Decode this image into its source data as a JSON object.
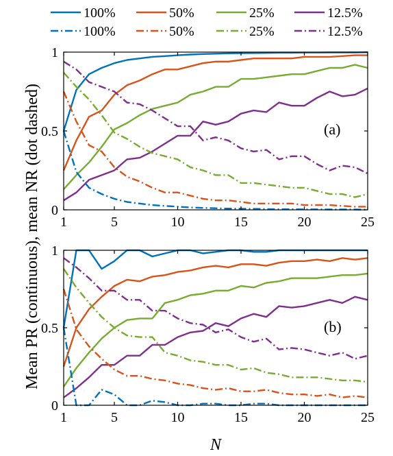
{
  "chart_data": {
    "type": "line",
    "ylabel": "Mean PR (continuous), mean NR (dot dashed)",
    "xlabel": "N",
    "legend": {
      "placement": "top",
      "rows": [
        [
          "100%",
          "50%",
          "25%",
          "12.5%"
        ],
        [
          "100%",
          "50%",
          "25%",
          "12.5%"
        ]
      ]
    },
    "colors": {
      "100%": "#0072BD",
      "50%": "#D95319",
      "25%": "#77AC30",
      "12.5%": "#7E2F8E"
    },
    "x": [
      1,
      2,
      3,
      4,
      5,
      6,
      7,
      8,
      9,
      10,
      11,
      12,
      13,
      14,
      15,
      16,
      17,
      18,
      19,
      20,
      21,
      22,
      23,
      24,
      25
    ],
    "xlim": [
      1,
      25
    ],
    "ylim": [
      0,
      1
    ],
    "xticks": [
      "1",
      "5",
      "10",
      "15",
      "20",
      "25"
    ],
    "yticks": [
      "0",
      "0.5",
      "1"
    ],
    "panels": [
      {
        "label": "(a)",
        "series": [
          {
            "name": "100%",
            "style": "solid",
            "values": [
              0.5,
              0.76,
              0.86,
              0.9,
              0.93,
              0.95,
              0.96,
              0.97,
              0.975,
              0.98,
              0.985,
              0.988,
              0.99,
              0.992,
              0.993,
              0.994,
              0.995,
              0.996,
              0.996,
              0.997,
              0.997,
              0.998,
              0.998,
              0.998,
              0.999
            ]
          },
          {
            "name": "50%",
            "style": "solid",
            "values": [
              0.25,
              0.44,
              0.59,
              0.63,
              0.73,
              0.79,
              0.82,
              0.86,
              0.89,
              0.89,
              0.91,
              0.93,
              0.94,
              0.94,
              0.95,
              0.96,
              0.96,
              0.96,
              0.96,
              0.97,
              0.97,
              0.97,
              0.975,
              0.98,
              0.98
            ]
          },
          {
            "name": "25%",
            "style": "solid",
            "values": [
              0.13,
              0.22,
              0.3,
              0.4,
              0.51,
              0.55,
              0.6,
              0.64,
              0.66,
              0.68,
              0.73,
              0.75,
              0.78,
              0.78,
              0.83,
              0.83,
              0.84,
              0.85,
              0.86,
              0.86,
              0.88,
              0.9,
              0.9,
              0.92,
              0.9
            ]
          },
          {
            "name": "12.5%",
            "style": "solid",
            "values": [
              0.06,
              0.11,
              0.19,
              0.22,
              0.25,
              0.32,
              0.33,
              0.37,
              0.42,
              0.47,
              0.47,
              0.56,
              0.54,
              0.56,
              0.61,
              0.63,
              0.62,
              0.68,
              0.66,
              0.66,
              0.71,
              0.75,
              0.72,
              0.73,
              0.77
            ]
          },
          {
            "name": "100%",
            "style": "dashdot",
            "values": [
              0.5,
              0.24,
              0.14,
              0.1,
              0.07,
              0.05,
              0.04,
              0.03,
              0.025,
              0.02,
              0.015,
              0.012,
              0.01,
              0.008,
              0.007,
              0.006,
              0.005,
              0.004,
              0.004,
              0.003,
              0.003,
              0.002,
              0.002,
              0.002,
              0.001
            ]
          },
          {
            "name": "50%",
            "style": "dashdot",
            "values": [
              0.75,
              0.56,
              0.41,
              0.37,
              0.27,
              0.21,
              0.18,
              0.14,
              0.11,
              0.11,
              0.09,
              0.07,
              0.06,
              0.06,
              0.05,
              0.04,
              0.04,
              0.04,
              0.04,
              0.03,
              0.03,
              0.03,
              0.025,
              0.02,
              0.02
            ]
          },
          {
            "name": "25%",
            "style": "dashdot",
            "values": [
              0.87,
              0.78,
              0.7,
              0.6,
              0.49,
              0.45,
              0.4,
              0.36,
              0.34,
              0.32,
              0.27,
              0.25,
              0.22,
              0.22,
              0.17,
              0.17,
              0.16,
              0.15,
              0.14,
              0.14,
              0.12,
              0.1,
              0.1,
              0.08,
              0.1
            ]
          },
          {
            "name": "12.5%",
            "style": "dashdot",
            "values": [
              0.94,
              0.89,
              0.81,
              0.78,
              0.75,
              0.68,
              0.67,
              0.63,
              0.58,
              0.53,
              0.53,
              0.44,
              0.46,
              0.44,
              0.39,
              0.37,
              0.38,
              0.32,
              0.34,
              0.34,
              0.29,
              0.25,
              0.28,
              0.27,
              0.23
            ]
          }
        ]
      },
      {
        "label": "(b)",
        "series": [
          {
            "name": "100%",
            "style": "solid",
            "values": [
              0.5,
              1.0,
              1.0,
              0.88,
              0.93,
              1.0,
              1.0,
              0.96,
              0.98,
              1.0,
              1.0,
              0.98,
              0.99,
              1.0,
              1.0,
              0.99,
              0.99,
              1.0,
              1.0,
              1.0,
              1.0,
              1.0,
              1.0,
              1.0,
              1.0
            ]
          },
          {
            "name": "50%",
            "style": "solid",
            "values": [
              0.25,
              0.5,
              0.62,
              0.7,
              0.77,
              0.81,
              0.8,
              0.83,
              0.84,
              0.86,
              0.87,
              0.89,
              0.9,
              0.89,
              0.91,
              0.91,
              0.9,
              0.92,
              0.93,
              0.93,
              0.94,
              0.93,
              0.95,
              0.94,
              0.95
            ]
          },
          {
            "name": "25%",
            "style": "solid",
            "values": [
              0.12,
              0.24,
              0.34,
              0.43,
              0.5,
              0.55,
              0.56,
              0.56,
              0.66,
              0.68,
              0.71,
              0.72,
              0.74,
              0.74,
              0.77,
              0.76,
              0.79,
              0.8,
              0.82,
              0.82,
              0.82,
              0.83,
              0.84,
              0.84,
              0.85
            ]
          },
          {
            "name": "12.5%",
            "style": "solid",
            "values": [
              0.05,
              0.11,
              0.18,
              0.26,
              0.26,
              0.32,
              0.32,
              0.39,
              0.39,
              0.44,
              0.47,
              0.48,
              0.53,
              0.51,
              0.56,
              0.59,
              0.57,
              0.64,
              0.63,
              0.64,
              0.66,
              0.68,
              0.66,
              0.7,
              0.68
            ]
          },
          {
            "name": "100%",
            "style": "dashdot",
            "values": [
              0.5,
              0.0,
              0.0,
              0.1,
              0.07,
              0.0,
              0.0,
              0.03,
              0.02,
              0.0,
              0.0,
              0.01,
              0.01,
              0.0,
              0.0,
              0.01,
              0.01,
              0.0,
              0.0,
              0.0,
              0.0,
              0.0,
              0.0,
              0.0,
              0.0
            ]
          },
          {
            "name": "50%",
            "style": "dashdot",
            "values": [
              0.75,
              0.49,
              0.38,
              0.3,
              0.23,
              0.19,
              0.19,
              0.17,
              0.16,
              0.14,
              0.13,
              0.11,
              0.1,
              0.11,
              0.09,
              0.09,
              0.1,
              0.08,
              0.07,
              0.07,
              0.06,
              0.07,
              0.05,
              0.06,
              0.05
            ]
          },
          {
            "name": "25%",
            "style": "dashdot",
            "values": [
              0.88,
              0.76,
              0.66,
              0.57,
              0.5,
              0.45,
              0.44,
              0.44,
              0.34,
              0.32,
              0.29,
              0.28,
              0.26,
              0.26,
              0.23,
              0.24,
              0.21,
              0.2,
              0.18,
              0.18,
              0.18,
              0.17,
              0.16,
              0.16,
              0.15
            ]
          },
          {
            "name": "12.5%",
            "style": "dashdot",
            "values": [
              0.95,
              0.89,
              0.82,
              0.74,
              0.74,
              0.68,
              0.68,
              0.61,
              0.61,
              0.56,
              0.53,
              0.52,
              0.47,
              0.49,
              0.44,
              0.41,
              0.43,
              0.36,
              0.37,
              0.36,
              0.34,
              0.32,
              0.34,
              0.3,
              0.32
            ]
          }
        ]
      }
    ]
  }
}
